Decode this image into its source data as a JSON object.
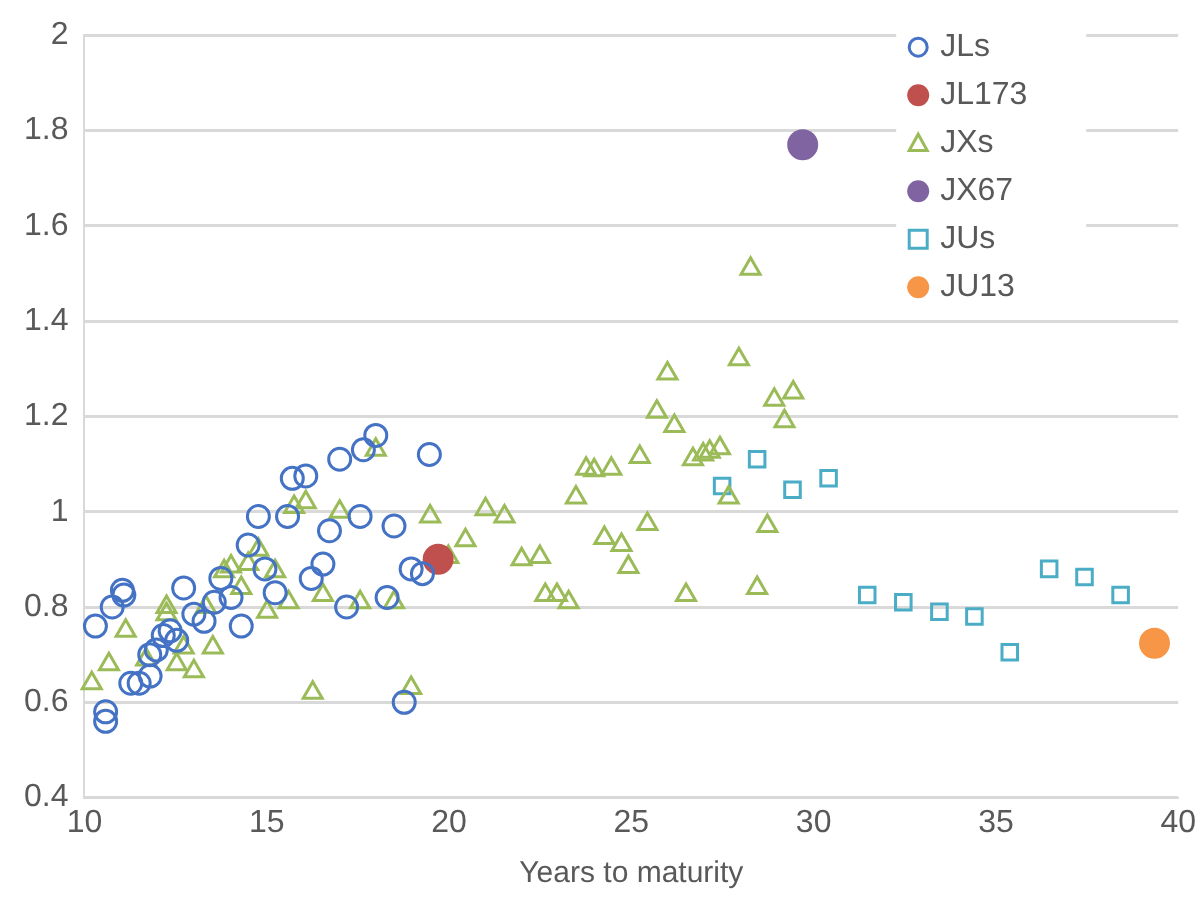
{
  "chart_data": {
    "type": "scatter",
    "xlabel": "Years to maturity",
    "xlim": [
      10,
      40
    ],
    "xticks": [
      10,
      15,
      20,
      25,
      30,
      35,
      40
    ],
    "ylim": [
      0.4,
      2
    ],
    "yticks": [
      0.4,
      0.6,
      0.8,
      1,
      1.2,
      1.4,
      1.6,
      1.8,
      2
    ],
    "grid": "y",
    "legend": "top right",
    "series": [
      {
        "name": "JLs",
        "color": "#4472c4",
        "marker": "circle",
        "x": [
          10.3,
          10.58,
          10.58,
          10.76,
          11.04,
          11.08,
          11.27,
          11.5,
          11.8,
          11.79,
          11.97,
          12.16,
          12.35,
          12.53,
          12.72,
          13.0,
          13.28,
          13.56,
          14.02,
          13.74,
          14.3,
          14.49,
          14.77,
          14.95,
          15.23,
          15.57,
          15.7,
          16.07,
          16.22,
          16.54,
          16.72,
          17.0,
          17.19,
          17.56,
          17.65,
          17.99,
          18.49,
          18.3,
          18.77,
          18.96,
          19.27,
          19.46
        ],
        "values": [
          0.76,
          0.58,
          0.56,
          0.8,
          0.835,
          0.825,
          0.64,
          0.64,
          0.655,
          0.7,
          0.71,
          0.74,
          0.75,
          0.73,
          0.84,
          0.785,
          0.77,
          0.81,
          0.82,
          0.86,
          0.76,
          0.93,
          0.99,
          0.88,
          0.83,
          0.99,
          1.07,
          1.075,
          0.86,
          0.89,
          0.96,
          1.11,
          0.8,
          0.99,
          1.13,
          1.16,
          0.97,
          0.82,
          0.6,
          0.88,
          0.87,
          1.12
        ]
      },
      {
        "name": "JL173",
        "color": "#c0504d",
        "marker": "circle",
        "x": [
          19.7
        ],
        "values": [
          0.9
        ]
      },
      {
        "name": "JXs",
        "color": "#9bbb59",
        "marker": "triangle",
        "x": [
          10.2,
          10.67,
          11.13,
          11.69,
          12.25,
          12.25,
          12.53,
          12.72,
          13.0,
          13.33,
          13.52,
          13.83,
          14.02,
          14.3,
          14.49,
          14.77,
          15.23,
          15.01,
          15.6,
          15.75,
          16.07,
          16.26,
          16.54,
          17.0,
          17.56,
          17.99,
          18.49,
          18.96,
          19.48,
          19.98,
          20.45,
          21.0,
          21.52,
          21.99,
          22.49,
          22.64,
          22.96,
          23.28,
          23.48,
          23.76,
          23.98,
          24.45,
          24.26,
          24.73,
          24.92,
          25.23,
          25.44,
          25.7,
          26.18,
          25.99,
          26.5,
          26.69,
          26.97,
          27.15,
          27.43,
          27.67,
          27.95,
          28.45,
          28.73,
          28.27,
          28.92,
          29.44,
          29.2
        ],
        "values": [
          0.64,
          0.68,
          0.75,
          0.69,
          0.8,
          0.785,
          0.68,
          0.715,
          0.665,
          0.8,
          0.715,
          0.875,
          0.885,
          0.84,
          0.89,
          0.92,
          0.875,
          0.79,
          0.81,
          1.01,
          1.02,
          0.62,
          0.825,
          1.0,
          0.81,
          1.13,
          0.81,
          0.63,
          0.99,
          0.905,
          0.94,
          1.005,
          0.99,
          0.9,
          0.905,
          0.825,
          0.825,
          0.81,
          1.03,
          1.09,
          1.087,
          1.09,
          0.945,
          0.93,
          0.884,
          1.115,
          0.974,
          1.21,
          1.18,
          1.29,
          0.825,
          1.11,
          1.12,
          1.126,
          1.133,
          1.03,
          1.32,
          0.84,
          0.97,
          1.51,
          1.235,
          1.25,
          1.19
        ]
      },
      {
        "name": "JX67",
        "color": "#8064a2",
        "marker": "circle",
        "x": [
          29.7
        ],
        "values": [
          1.77
        ]
      },
      {
        "name": "JUs",
        "color": "#4bacc6",
        "marker": "square",
        "x": [
          27.49,
          28.45,
          29.42,
          30.41,
          31.47,
          32.46,
          33.45,
          34.41,
          35.38,
          36.46,
          37.43,
          38.42
        ],
        "values": [
          1.054,
          1.11,
          1.046,
          1.07,
          0.825,
          0.81,
          0.79,
          0.78,
          0.705,
          0.88,
          0.863,
          0.825
        ]
      },
      {
        "name": "JU13",
        "color": "#f79646",
        "marker": "circle",
        "x": [
          39.35
        ],
        "values": [
          0.724
        ]
      }
    ]
  }
}
